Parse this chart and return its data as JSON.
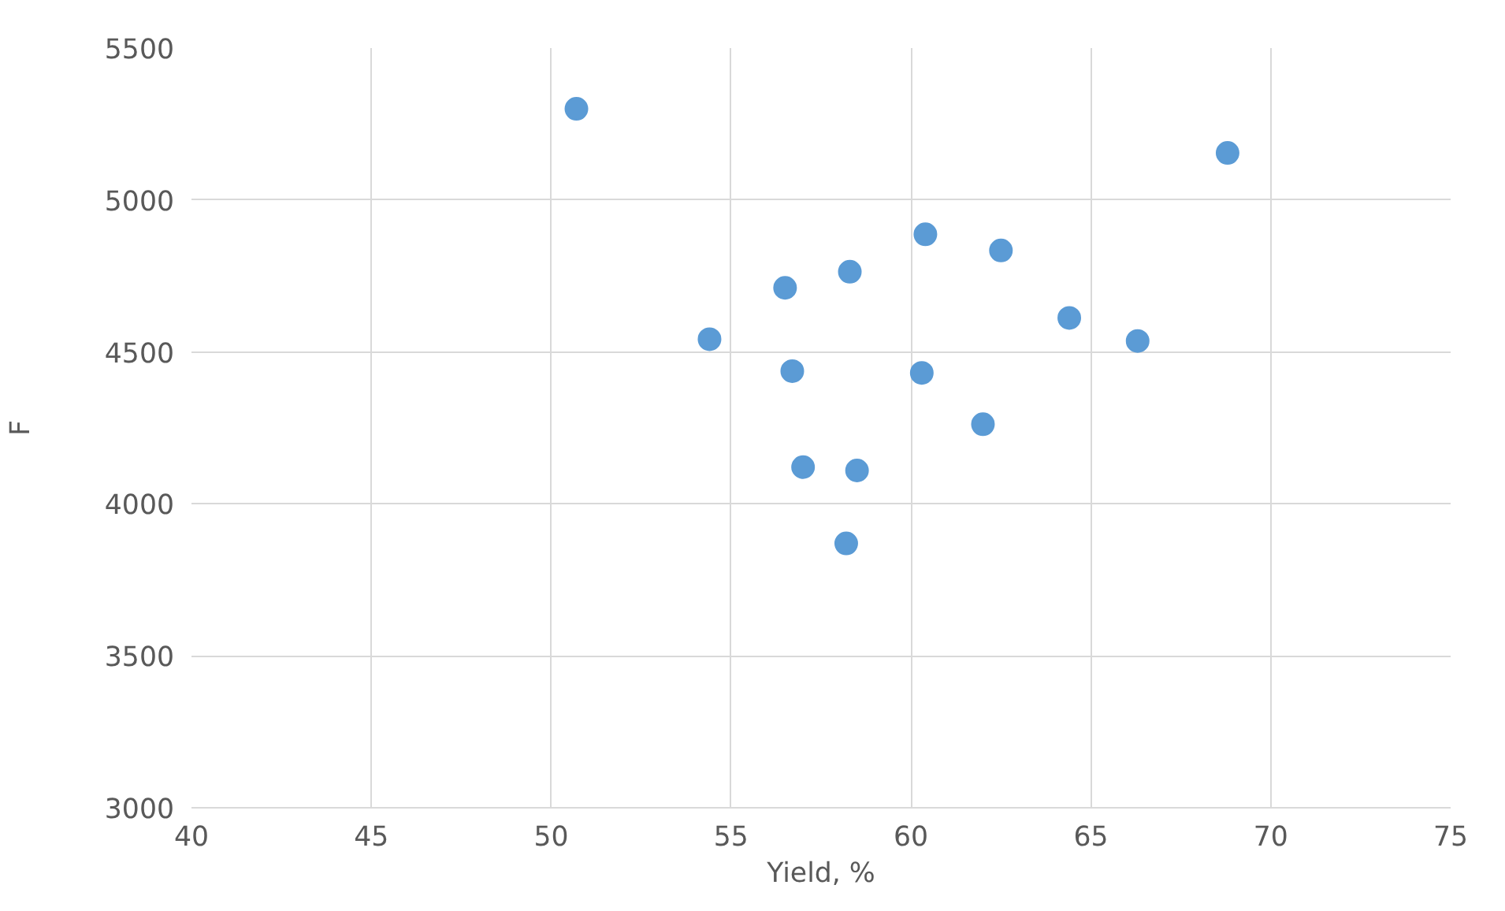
{
  "chart_data": {
    "type": "scatter",
    "xlabel": "Yield, %",
    "ylabel": "F",
    "x": [
      50.7,
      68.8,
      60.4,
      62.5,
      58.3,
      56.5,
      64.4,
      54.4,
      66.3,
      56.7,
      60.3,
      62.0,
      57.0,
      58.5,
      58.2
    ],
    "values": [
      5300,
      5155,
      4887,
      4834,
      4764,
      4711,
      4612,
      4542,
      4536,
      4437,
      4431,
      4262,
      4121,
      4110,
      3870
    ],
    "color": "#5b9bd5",
    "marker": "circle",
    "grid": true,
    "xlim": [
      40,
      75
    ],
    "xticks": [
      40,
      45,
      50,
      55,
      60,
      65,
      70,
      75
    ],
    "ylim": [
      3000,
      5500
    ],
    "yticks": [
      3000,
      3500,
      4000,
      4500,
      5000,
      5500
    ]
  }
}
